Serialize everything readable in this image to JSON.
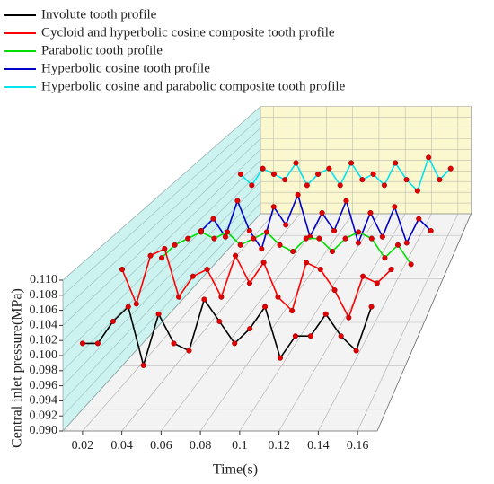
{
  "chart_data": {
    "type": "line3d",
    "xlabel": "Time(s)",
    "ylabel": "Central inlet pressure(MPa)",
    "x": [
      0.01,
      0.018,
      0.026,
      0.034,
      0.042,
      0.05,
      0.058,
      0.066,
      0.074,
      0.082,
      0.09,
      0.098,
      0.106,
      0.114,
      0.122,
      0.13,
      0.138,
      0.146,
      0.154,
      0.162
    ],
    "xlim": [
      0.01,
      0.17
    ],
    "xticks": [
      0.02,
      0.04,
      0.06,
      0.08,
      0.1,
      0.12,
      0.14,
      0.16
    ],
    "ylim": [
      0.09,
      0.11
    ],
    "yticks": [
      {
        "value": 0.09,
        "label": "0.090"
      },
      0.092,
      0.094,
      0.096,
      0.098,
      {
        "value": 0.1,
        "label": "0.100"
      },
      0.102,
      0.104,
      0.106,
      0.108,
      {
        "value": 0.11,
        "label": "0.110"
      }
    ],
    "grid": true,
    "legend": "top-left",
    "marker_color": "#e00000",
    "series": [
      {
        "name": "Involute tooth profile",
        "color": "#000000",
        "values": [
          0.099,
          0.099,
          0.102,
          0.104,
          0.096,
          0.103,
          0.099,
          0.098,
          0.105,
          0.102,
          0.099,
          0.101,
          0.104,
          0.097,
          0.1,
          0.1,
          0.103,
          0.1,
          0.098,
          0.104
        ]
      },
      {
        "name": "Cycloid and hyperbolic cosine composite tooth profile",
        "color": "#ff0000",
        "values": [
          0.104,
          0.099,
          0.106,
          0.107,
          0.1,
          0.103,
          0.104,
          0.1,
          0.106,
          0.102,
          0.105,
          0.1,
          0.098,
          0.105,
          0.104,
          0.101,
          0.097,
          0.103,
          0.102,
          0.104
        ]
      },
      {
        "name": "Parabolic tooth profile",
        "color": "#00dd00",
        "values": [
          0.1,
          0.102,
          0.103,
          0.104,
          0.103,
          0.104,
          0.102,
          0.103,
          0.104,
          0.102,
          0.101,
          0.103,
          0.103,
          0.101,
          0.103,
          0.104,
          0.103,
          0.1,
          0.102,
          0.099
        ]
      },
      {
        "name": "Hyperbolic cosine tooth profile",
        "color": "#0000cc",
        "values": [
          0.098,
          0.1,
          0.097,
          0.103,
          0.098,
          0.095,
          0.102,
          0.099,
          0.104,
          0.097,
          0.101,
          0.098,
          0.103,
          0.096,
          0.101,
          0.097,
          0.102,
          0.096,
          0.1,
          0.098
        ]
      },
      {
        "name": "Hyperbolic cosine and parabolic composite tooth profile",
        "color": "#00e5ee",
        "values": [
          0.101,
          0.099,
          0.102,
          0.101,
          0.1,
          0.103,
          0.099,
          0.101,
          0.102,
          0.099,
          0.103,
          0.1,
          0.101,
          0.099,
          0.103,
          0.1,
          0.098,
          0.104,
          0.1,
          0.102
        ]
      }
    ]
  }
}
